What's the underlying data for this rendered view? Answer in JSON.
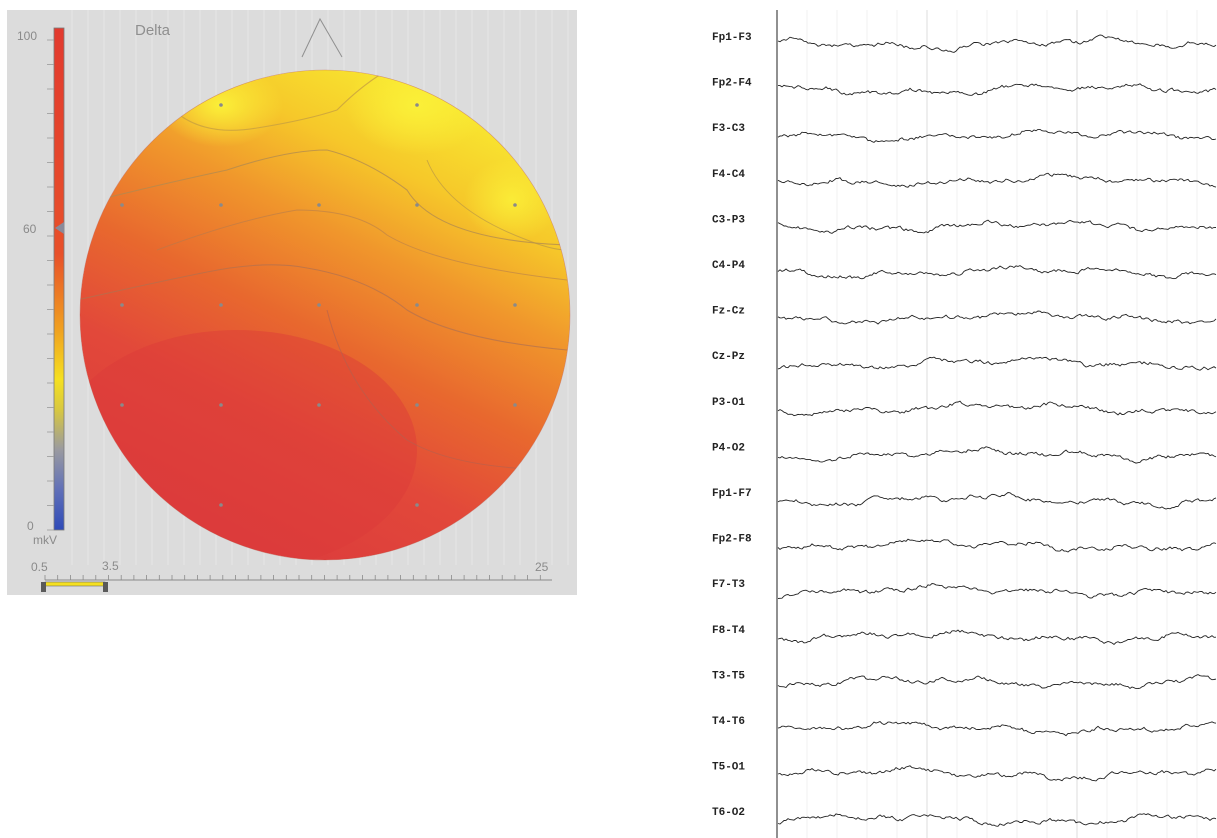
{
  "brain_map": {
    "band_title": "Delta",
    "color_scale": {
      "max_label": "100",
      "mid_label": "60",
      "min_label": "0",
      "unit_label": "mkV",
      "marker_value": 60,
      "stops": [
        "#e23a2e",
        "#e85a2a",
        "#f0a020",
        "#f5e020",
        "#c9c24a",
        "#8a8a9a",
        "#5a6ab8",
        "#2e4ab8"
      ]
    },
    "frequency_axis": {
      "start_label": "0.5",
      "selection_end_label": "3.5",
      "end_label": "25",
      "range": [
        0.5,
        25
      ],
      "selection": [
        0.5,
        3.5
      ]
    },
    "colors": {
      "hot": "#e0403a",
      "warm": "#f08a2a",
      "yellow": "#f8e830",
      "panel_bg": "#dcdcdc"
    }
  },
  "eeg": {
    "channels": [
      {
        "label": "Fp1-F3"
      },
      {
        "label": "Fp2-F4"
      },
      {
        "label": "F3-C3"
      },
      {
        "label": "F4-C4"
      },
      {
        "label": "C3-P3"
      },
      {
        "label": "C4-P4"
      },
      {
        "label": "Fz-Cz"
      },
      {
        "label": "Cz-Pz"
      },
      {
        "label": "P3-O1"
      },
      {
        "label": "P4-O2"
      },
      {
        "label": "Fp1-F7"
      },
      {
        "label": "Fp2-F8"
      },
      {
        "label": "F7-T3"
      },
      {
        "label": "F8-T4"
      },
      {
        "label": "T3-T5"
      },
      {
        "label": "T4-T6"
      },
      {
        "label": "T5-O1"
      },
      {
        "label": "T6-O2"
      }
    ]
  }
}
